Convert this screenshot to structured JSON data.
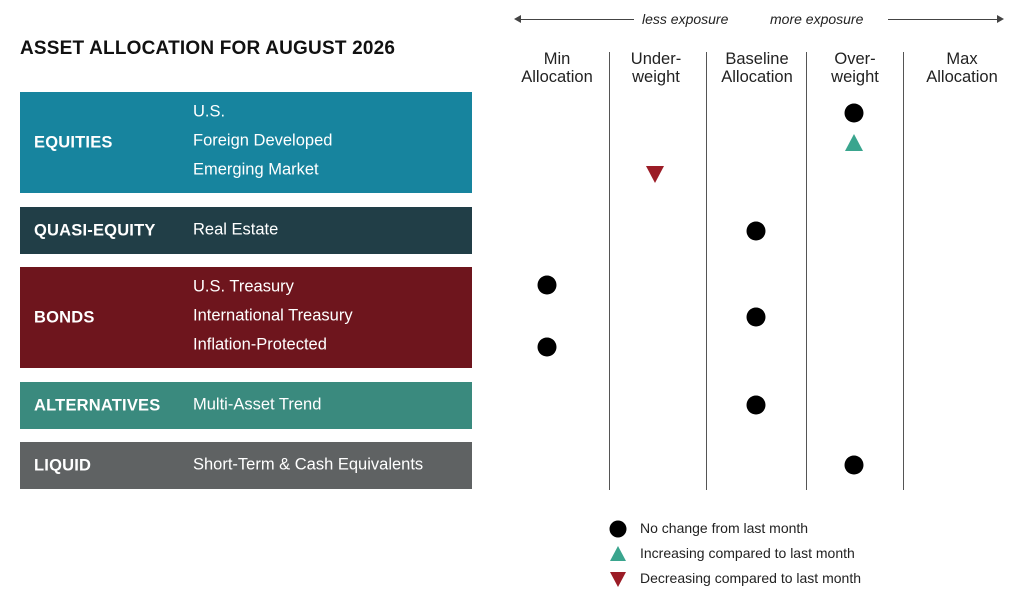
{
  "title": "ASSET ALLOCATION FOR AUGUST 2026",
  "exposure": {
    "less": "less exposure",
    "more": "more exposure"
  },
  "columns": [
    {
      "line1": "Min",
      "line2": "Allocation"
    },
    {
      "line1": "Under-",
      "line2": "weight"
    },
    {
      "line1": "Baseline",
      "line2": "Allocation"
    },
    {
      "line1": "Over-",
      "line2": "weight"
    },
    {
      "line1": "Max",
      "line2": "Allocation"
    }
  ],
  "colors": {
    "equities": "#17849e",
    "quasi_equity": "#213e47",
    "bonds": "#6e151d",
    "alternatives": "#3a8a7e",
    "liquid": "#5f6263",
    "no_change": "#000000",
    "increasing": "#3aa58e",
    "decreasing": "#9b1c26"
  },
  "groups": [
    {
      "label": "EQUITIES",
      "color_key": "equities",
      "items": [
        "U.S.",
        "Foreign Developed",
        "Emerging Market"
      ]
    },
    {
      "label": "QUASI-EQUITY",
      "color_key": "quasi_equity",
      "items": [
        "Real Estate"
      ]
    },
    {
      "label": "BONDS",
      "color_key": "bonds",
      "items": [
        "U.S. Treasury",
        "International Treasury",
        "Inflation-Protected"
      ]
    },
    {
      "label": "ALTERNATIVES",
      "color_key": "alternatives",
      "items": [
        "Multi-Asset Trend"
      ]
    },
    {
      "label": "LIQUID",
      "color_key": "liquid",
      "items": [
        "Short-Term & Cash Equivalents"
      ]
    }
  ],
  "chart_data": {
    "type": "table",
    "title": "ASSET ALLOCATION FOR AUGUST 2026",
    "columns": [
      "Min Allocation",
      "Under-weight",
      "Baseline Allocation",
      "Over-weight",
      "Max Allocation"
    ],
    "rows": [
      {
        "group": "EQUITIES",
        "asset": "U.S.",
        "allocation": "Over-weight",
        "change": "no change"
      },
      {
        "group": "EQUITIES",
        "asset": "Foreign Developed",
        "allocation": "Over-weight",
        "change": "increasing"
      },
      {
        "group": "EQUITIES",
        "asset": "Emerging Market",
        "allocation": "Under-weight",
        "change": "decreasing"
      },
      {
        "group": "QUASI-EQUITY",
        "asset": "Real Estate",
        "allocation": "Baseline Allocation",
        "change": "no change"
      },
      {
        "group": "BONDS",
        "asset": "U.S. Treasury",
        "allocation": "Min Allocation",
        "change": "no change"
      },
      {
        "group": "BONDS",
        "asset": "International Treasury",
        "allocation": "Baseline Allocation",
        "change": "no change"
      },
      {
        "group": "BONDS",
        "asset": "Inflation-Protected",
        "allocation": "Min Allocation",
        "change": "no change"
      },
      {
        "group": "ALTERNATIVES",
        "asset": "Multi-Asset Trend",
        "allocation": "Baseline Allocation",
        "change": "no change"
      },
      {
        "group": "LIQUID",
        "asset": "Short-Term & Cash Equivalents",
        "allocation": "Over-weight",
        "change": "no change"
      }
    ],
    "legend": [
      {
        "symbol": "circle",
        "key": "no change",
        "label": "No change from last month"
      },
      {
        "symbol": "triangle-up",
        "key": "increasing",
        "label": "Increasing compared to last month"
      },
      {
        "symbol": "triangle-down",
        "key": "decreasing",
        "label": "Decreasing compared to last month"
      }
    ]
  }
}
